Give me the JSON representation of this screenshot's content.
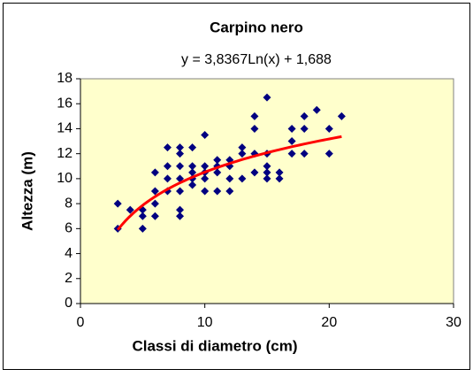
{
  "chart_data": {
    "type": "scatter",
    "title": "Carpino nero",
    "annotation": "y = 3,8367Ln(x) + 1,688",
    "x_label": "Classi di diametro (cm)",
    "y_label": "Altezza (m)",
    "xlim": [
      0,
      30
    ],
    "xticks": [
      0,
      10,
      20,
      30
    ],
    "ylim": [
      0,
      18
    ],
    "yticks": [
      0,
      2,
      4,
      6,
      8,
      10,
      12,
      14,
      16,
      18
    ],
    "grid": false,
    "series": [
      {
        "name": "Altezza",
        "color": "#000080",
        "x": [
          3,
          3,
          4,
          5,
          5,
          5,
          6,
          6,
          6,
          6,
          7,
          7,
          7,
          7,
          8,
          8,
          8,
          8,
          8,
          8,
          8,
          9,
          9,
          9,
          9,
          9,
          10,
          10,
          10,
          10,
          10,
          11,
          11,
          11,
          11,
          12,
          12,
          12,
          12,
          13,
          13,
          13,
          14,
          14,
          14,
          14,
          15,
          15,
          15,
          15,
          15,
          16,
          16,
          17,
          17,
          17,
          18,
          18,
          18,
          19,
          20,
          20,
          21
        ],
        "values": [
          6,
          8,
          7.5,
          6,
          7,
          7.5,
          7,
          8,
          9,
          10.5,
          9,
          10,
          11,
          12.5,
          7,
          7.5,
          9,
          10,
          11,
          12,
          12.5,
          9.5,
          10,
          10.5,
          11,
          12.5,
          9,
          10,
          10.5,
          11,
          13.5,
          9,
          10.5,
          11,
          11.5,
          9,
          10,
          11,
          11.5,
          10,
          12,
          12.5,
          10.5,
          12,
          14,
          15,
          10,
          10.5,
          11,
          12,
          16.5,
          10,
          10.5,
          12,
          13,
          14,
          12,
          14,
          15,
          15.5,
          12,
          14,
          15
        ]
      }
    ],
    "trendline": {
      "a": 3.8367,
      "b": 1.688,
      "x_range": [
        3,
        21
      ],
      "color": "#ff0000"
    }
  }
}
